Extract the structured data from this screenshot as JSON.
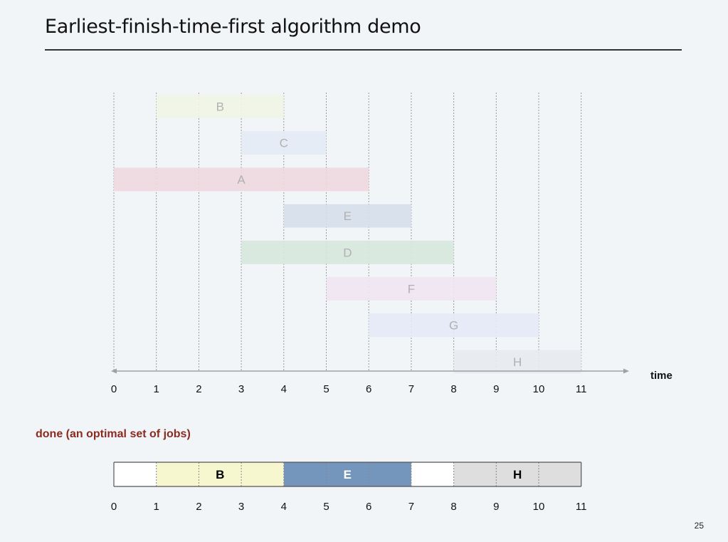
{
  "title": "Earliest-finish-time-first algorithm demo",
  "done_label": "done (an optimal set of jobs)",
  "page_number": "25",
  "axis_label": "time",
  "ticks": [
    "0",
    "1",
    "2",
    "3",
    "4",
    "5",
    "6",
    "7",
    "8",
    "9",
    "10",
    "11"
  ],
  "jobs": [
    {
      "label": "B",
      "start": 1,
      "end": 4,
      "color": "#f1f5e6"
    },
    {
      "label": "C",
      "start": 3,
      "end": 5,
      "color": "#e3ebf4"
    },
    {
      "label": "A",
      "start": 0,
      "end": 6,
      "color": "#eed9df"
    },
    {
      "label": "E",
      "start": 4,
      "end": 7,
      "color": "#d6e0ea"
    },
    {
      "label": "D",
      "start": 3,
      "end": 8,
      "color": "#d7e8dd"
    },
    {
      "label": "F",
      "start": 5,
      "end": 9,
      "color": "#f1e5f1"
    },
    {
      "label": "G",
      "start": 6,
      "end": 10,
      "color": "#e6e9f6"
    },
    {
      "label": "H",
      "start": 8,
      "end": 11,
      "color": "#e7eaee"
    }
  ],
  "selected": [
    {
      "label": "B",
      "start": 1,
      "end": 4,
      "color": "#f7f7cf",
      "text_color": "#000000"
    },
    {
      "label": "E",
      "start": 4,
      "end": 7,
      "color": "#7496bc",
      "text_color": "#ffffff"
    },
    {
      "label": "H",
      "start": 8,
      "end": 11,
      "color": "#dedede",
      "text_color": "#000000"
    }
  ]
}
